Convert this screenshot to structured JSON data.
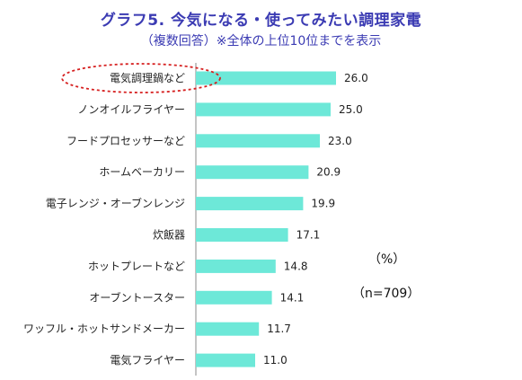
{
  "title": "グラフ5. 今気になる・使ってみたい調理家電",
  "subtitle": "（複数回答）※全体の上位10位までを表示",
  "unit_label": "（%）",
  "n_label": "（n=709）",
  "colors": {
    "bar": "#6de8d8",
    "highlight": "#d62020",
    "title": "#3b3bb3"
  },
  "chart_data": {
    "type": "bar",
    "orientation": "horizontal",
    "categories": [
      "電気調理鍋など",
      "ノンオイルフライヤー",
      "フードプロセッサーなど",
      "ホームベーカリー",
      "電子レンジ・オーブンレンジ",
      "炊飯器",
      "ホットプレートなど",
      "オーブントースター",
      "ワッフル・ホットサンドメーカー",
      "電気フライヤー"
    ],
    "values": [
      26.0,
      25.0,
      23.0,
      20.9,
      19.9,
      17.1,
      14.8,
      14.1,
      11.7,
      11.0
    ],
    "value_labels": [
      "26.0",
      "25.0",
      "23.0",
      "20.9",
      "19.9",
      "17.1",
      "14.8",
      "14.1",
      "11.7",
      "11.0"
    ],
    "highlighted_category": "電気調理鍋など",
    "grid": false
  }
}
